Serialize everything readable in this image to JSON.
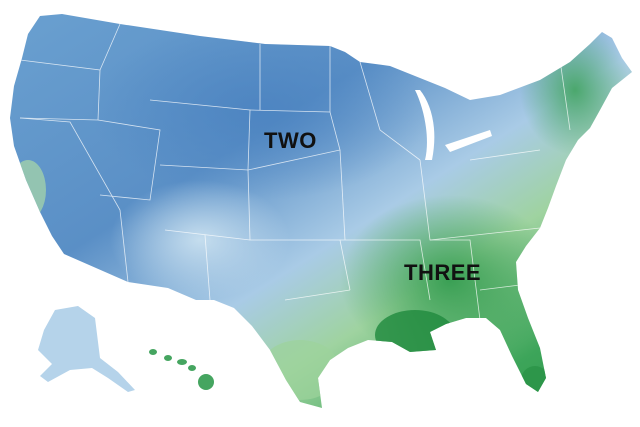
{
  "map": {
    "regions": [
      {
        "label": "TWO",
        "color": "#5b93c9"
      },
      {
        "label": "THREE",
        "color": "#2f9a4c"
      }
    ],
    "colors": {
      "deep_blue": "#4f86c2",
      "light_blue": "#b9d6ec",
      "pale": "#d9ecdf",
      "light_green": "#8fcf8f",
      "deep_green": "#1f8a3d",
      "border_lines": "#ffffff"
    }
  }
}
